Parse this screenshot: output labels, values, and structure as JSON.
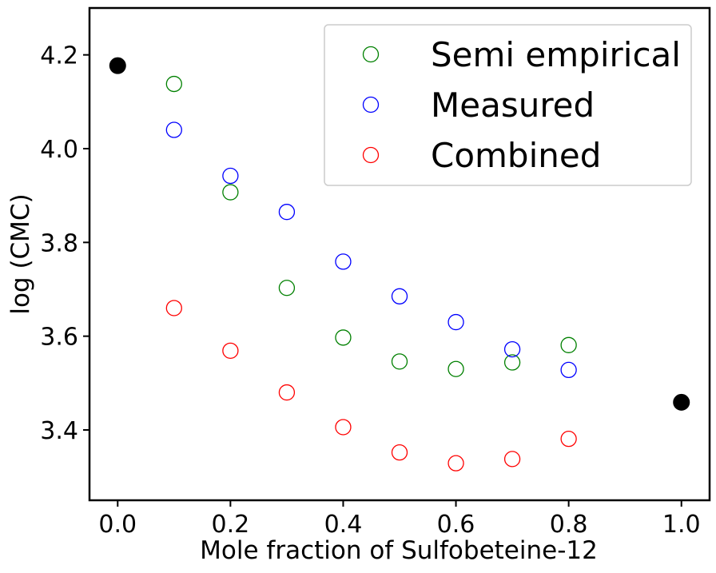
{
  "chart_data": {
    "type": "scatter",
    "title": "",
    "xlabel": "Mole fraction of Sulfobeteine-12",
    "ylabel": "log (CMC)",
    "xlim": [
      -0.05,
      1.05
    ],
    "ylim": [
      3.25,
      4.3
    ],
    "xticks": [
      0.0,
      0.2,
      0.4,
      0.6,
      0.8,
      1.0
    ],
    "xtick_labels": [
      "0.0",
      "0.2",
      "0.4",
      "0.6",
      "0.8",
      "1.0"
    ],
    "yticks": [
      3.4,
      3.6,
      3.8,
      4.0,
      4.2
    ],
    "ytick_labels": [
      "3.4",
      "3.6",
      "3.8",
      "4.0",
      "4.2"
    ],
    "grid": false,
    "legend_position": "top-right",
    "series": [
      {
        "name": "Semi empirical",
        "color": "#008000",
        "marker": "open-circle",
        "x": [
          0.1,
          0.2,
          0.3,
          0.4,
          0.5,
          0.6,
          0.7,
          0.8
        ],
        "y": [
          4.138,
          3.907,
          3.703,
          3.597,
          3.546,
          3.53,
          3.544,
          3.581
        ]
      },
      {
        "name": "Measured",
        "color": "#0000ff",
        "marker": "open-circle",
        "x": [
          0.1,
          0.2,
          0.3,
          0.4,
          0.5,
          0.6,
          0.7,
          0.8
        ],
        "y": [
          4.04,
          3.942,
          3.865,
          3.759,
          3.685,
          3.63,
          3.572,
          3.528
        ]
      },
      {
        "name": "Combined",
        "color": "#ff0000",
        "marker": "open-circle",
        "x": [
          0.1,
          0.2,
          0.3,
          0.4,
          0.5,
          0.6,
          0.7,
          0.8
        ],
        "y": [
          3.66,
          3.569,
          3.48,
          3.406,
          3.352,
          3.329,
          3.338,
          3.381
        ]
      }
    ],
    "endpoints": {
      "color": "#000000",
      "marker": "filled-circle",
      "x": [
        0.0,
        1.0
      ],
      "y": [
        4.177,
        3.459
      ]
    }
  }
}
